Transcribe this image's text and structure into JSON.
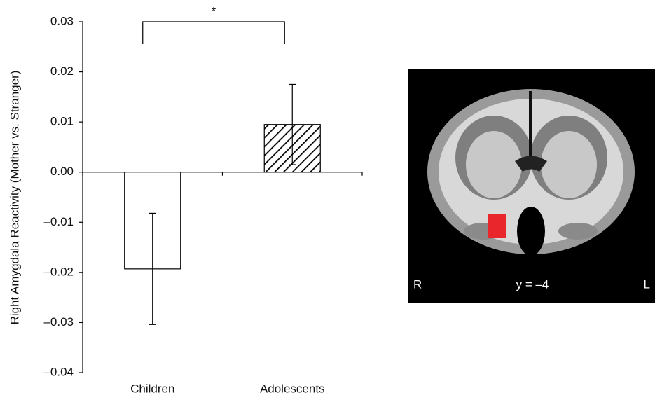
{
  "chart_data": {
    "type": "bar",
    "ylabel": "Right Amygdala Reactivity (Mother vs. Stranger)",
    "categories": [
      "Children",
      "Adolescents"
    ],
    "values": [
      -0.0193,
      0.0095
    ],
    "errors": [
      0.0111,
      0.008
    ],
    "hatch": [
      false,
      true
    ],
    "color": "#ffffff",
    "edgecolor": "#000000",
    "ylim": [
      -0.04,
      0.03
    ],
    "yticks": [
      0.03,
      0.02,
      0.01,
      {
        "value": 0,
        "label": "0.00"
      },
      {
        "value": -0.01,
        "label": "–0.01"
      },
      {
        "value": -0.02,
        "label": "–0.02"
      },
      {
        "value": -0.03,
        "label": "–0.03"
      },
      {
        "value": -0.04,
        "label": "–0.04"
      }
    ],
    "significance": "*",
    "image_labels": {
      "left": "R",
      "slice": "y = –4",
      "right": "L"
    }
  }
}
